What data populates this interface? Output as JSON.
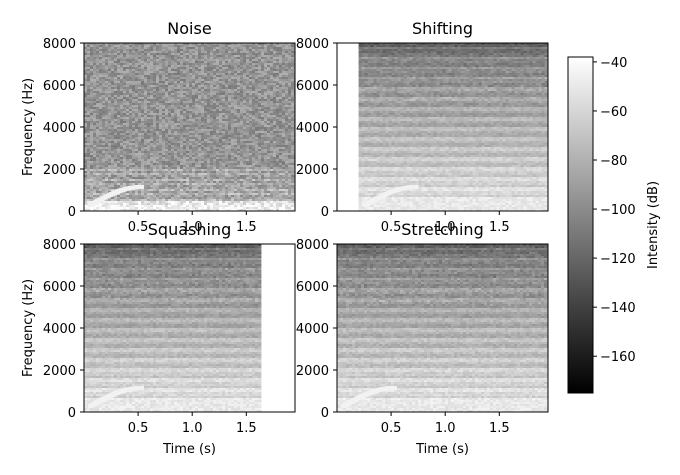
{
  "figure": {
    "colormap": "gray",
    "colors": {
      "background": "#ffffff",
      "axis": "#000000"
    }
  },
  "chart_data": [
    {
      "type": "heatmap",
      "title": "Noise",
      "xlabel": "",
      "ylabel": "Frequency (Hz)",
      "xlim": [
        0,
        1.95
      ],
      "ylim": [
        0,
        8000
      ],
      "xticks": [
        0.5,
        1.0,
        1.5
      ],
      "xtick_labels": [
        "0.5",
        "1.0",
        "1.5"
      ],
      "yticks": [
        0,
        2000,
        4000,
        6000,
        8000
      ],
      "ytick_labels": [
        "0",
        "2000",
        "4000",
        "6000",
        "8000"
      ],
      "active_time_range": [
        0,
        1.95
      ],
      "description_level": "uniform noise at about -95 dB with harmonic bands below 2200 Hz"
    },
    {
      "type": "heatmap",
      "title": "Shifting",
      "xlabel": "",
      "ylabel": "",
      "xlim": [
        0,
        1.95
      ],
      "ylim": [
        0,
        8000
      ],
      "xticks": [
        0.5,
        1.0,
        1.5
      ],
      "xtick_labels": [
        "0.5",
        "1.0",
        "1.5"
      ],
      "yticks": [
        0,
        2000,
        4000,
        6000,
        8000
      ],
      "ytick_labels": [
        "0",
        "2000",
        "4000",
        "6000",
        "8000"
      ],
      "active_time_range": [
        0.2,
        1.95
      ]
    },
    {
      "type": "heatmap",
      "title": "Squashing",
      "xlabel": "Time (s)",
      "ylabel": "Frequency (Hz)",
      "xlim": [
        0,
        1.95
      ],
      "ylim": [
        0,
        8000
      ],
      "xticks": [
        0.5,
        1.0,
        1.5
      ],
      "xtick_labels": [
        "0.5",
        "1.0",
        "1.5"
      ],
      "yticks": [
        0,
        2000,
        4000,
        6000,
        8000
      ],
      "ytick_labels": [
        "0",
        "2000",
        "4000",
        "6000",
        "8000"
      ],
      "active_time_range": [
        0,
        1.63
      ]
    },
    {
      "type": "heatmap",
      "title": "Stretching",
      "xlabel": "Time (s)",
      "ylabel": "",
      "xlim": [
        0,
        1.95
      ],
      "ylim": [
        0,
        8000
      ],
      "xticks": [
        0.5,
        1.0,
        1.5
      ],
      "xtick_labels": [
        "0.5",
        "1.0",
        "1.5"
      ],
      "yticks": [
        0,
        2000,
        4000,
        6000,
        8000
      ],
      "ytick_labels": [
        "0",
        "2000",
        "4000",
        "6000",
        "8000"
      ],
      "active_time_range": [
        0,
        1.95
      ]
    }
  ],
  "colorbar": {
    "label": "Intensity (dB)",
    "range": [
      -175,
      -38
    ],
    "ticks": [
      -40,
      -60,
      -80,
      -100,
      -120,
      -140,
      -160
    ],
    "tick_labels": [
      "−40",
      "−60",
      "−80",
      "−100",
      "−120",
      "−140",
      "−160"
    ]
  }
}
